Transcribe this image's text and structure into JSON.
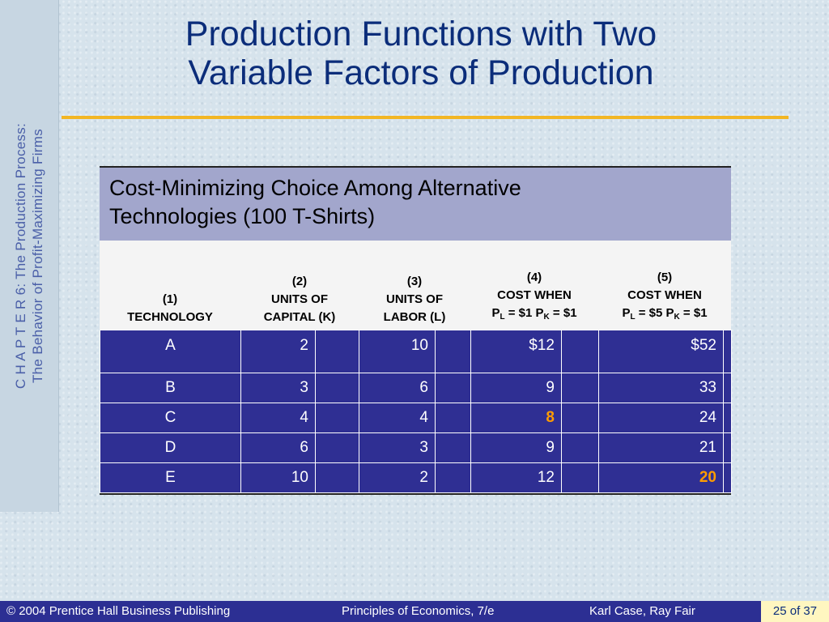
{
  "sidebar": {
    "line1": "C H A P T E R  6:  The Production Process:",
    "line2": "The  Behavior of Profit-Maximizing Firms"
  },
  "title": {
    "line1": "Production Functions with Two",
    "line2": "Variable Factors of Production"
  },
  "table": {
    "caption_line1": "Cost-Minimizing Choice Among Alternative",
    "caption_line2": "Technologies (100 T-Shirts)",
    "headers": [
      {
        "num": "(1)",
        "l1": "TECHNOLOGY"
      },
      {
        "num": "(2)",
        "l1": "UNITS OF",
        "l2": "CAPITAL (K)"
      },
      {
        "num": "(3)",
        "l1": "UNITS OF",
        "l2": "LABOR (L)"
      },
      {
        "num": "(4)",
        "l1": "COST WHEN",
        "p": "P",
        "s1": "L",
        "m": " = $1 P",
        "s2": "K",
        "e": " = $1"
      },
      {
        "num": "(5)",
        "l1": "COST WHEN",
        "p": "P",
        "s1": "L",
        "m": " = $5 P",
        "s2": "K",
        "e": " = $1"
      }
    ],
    "rows": [
      [
        "A",
        "2",
        "10",
        "$12",
        "$52"
      ],
      [
        "B",
        "3",
        "6",
        "9",
        "33"
      ],
      [
        "C",
        "4",
        "4",
        "8",
        "24"
      ],
      [
        "D",
        "6",
        "3",
        "9",
        "21"
      ],
      [
        "E",
        "10",
        "2",
        "12",
        "20"
      ]
    ]
  },
  "footer": {
    "copyright": "© 2004 Prentice Hall Business Publishing",
    "book": "Principles of Economics, 7/e",
    "authors": "Karl Case, Ray Fair",
    "page": "25 of 37"
  },
  "colors": {
    "title": "#0b2d7a",
    "accent_rule": "#f2b623",
    "table_cell": "#2f2f93",
    "highlight": "#ff9c00"
  }
}
